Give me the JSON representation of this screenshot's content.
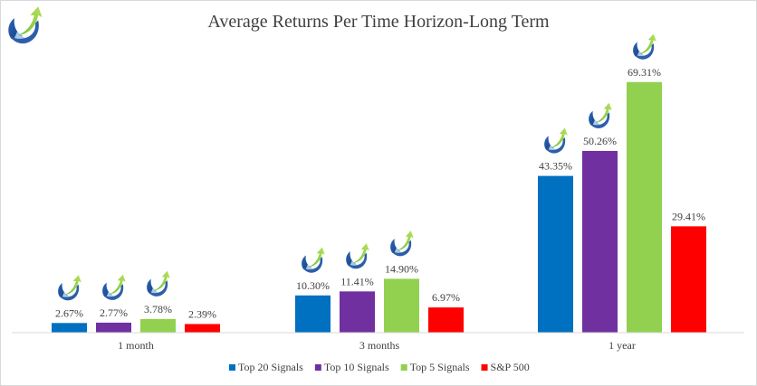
{
  "chart_data": {
    "type": "bar",
    "title": "Average Returns Per Time Horizon-Long Term",
    "categories": [
      "1 month",
      "3 months",
      "1 year"
    ],
    "series": [
      {
        "name": "Top 20 Signals",
        "color": "#0070c0",
        "values": [
          2.67,
          10.3,
          43.35
        ],
        "labels": [
          "2.67%",
          "10.30%",
          "43.35%"
        ]
      },
      {
        "name": "Top 10 Signals",
        "color": "#7030a0",
        "values": [
          2.77,
          11.41,
          50.26
        ],
        "labels": [
          "2.77%",
          "11.41%",
          "50.26%"
        ]
      },
      {
        "name": "Top 5 Signals",
        "color": "#92d050",
        "values": [
          3.78,
          14.9,
          69.31
        ],
        "labels": [
          "3.78%",
          "14.90%",
          "69.31%"
        ]
      },
      {
        "name": "S&P 500",
        "color": "#ff0000",
        "values": [
          2.39,
          6.97,
          29.41
        ],
        "labels": [
          "2.39%",
          "6.97%",
          "29.41%"
        ]
      }
    ],
    "value_unit": "%",
    "ylim": [
      0,
      75
    ],
    "legend_position": "bottom",
    "grid": false,
    "icon_marks": "logo-icon above bars of Top 20, Top 10 and Top 5 Signals"
  },
  "logo": {
    "icon": "logo-icon"
  }
}
